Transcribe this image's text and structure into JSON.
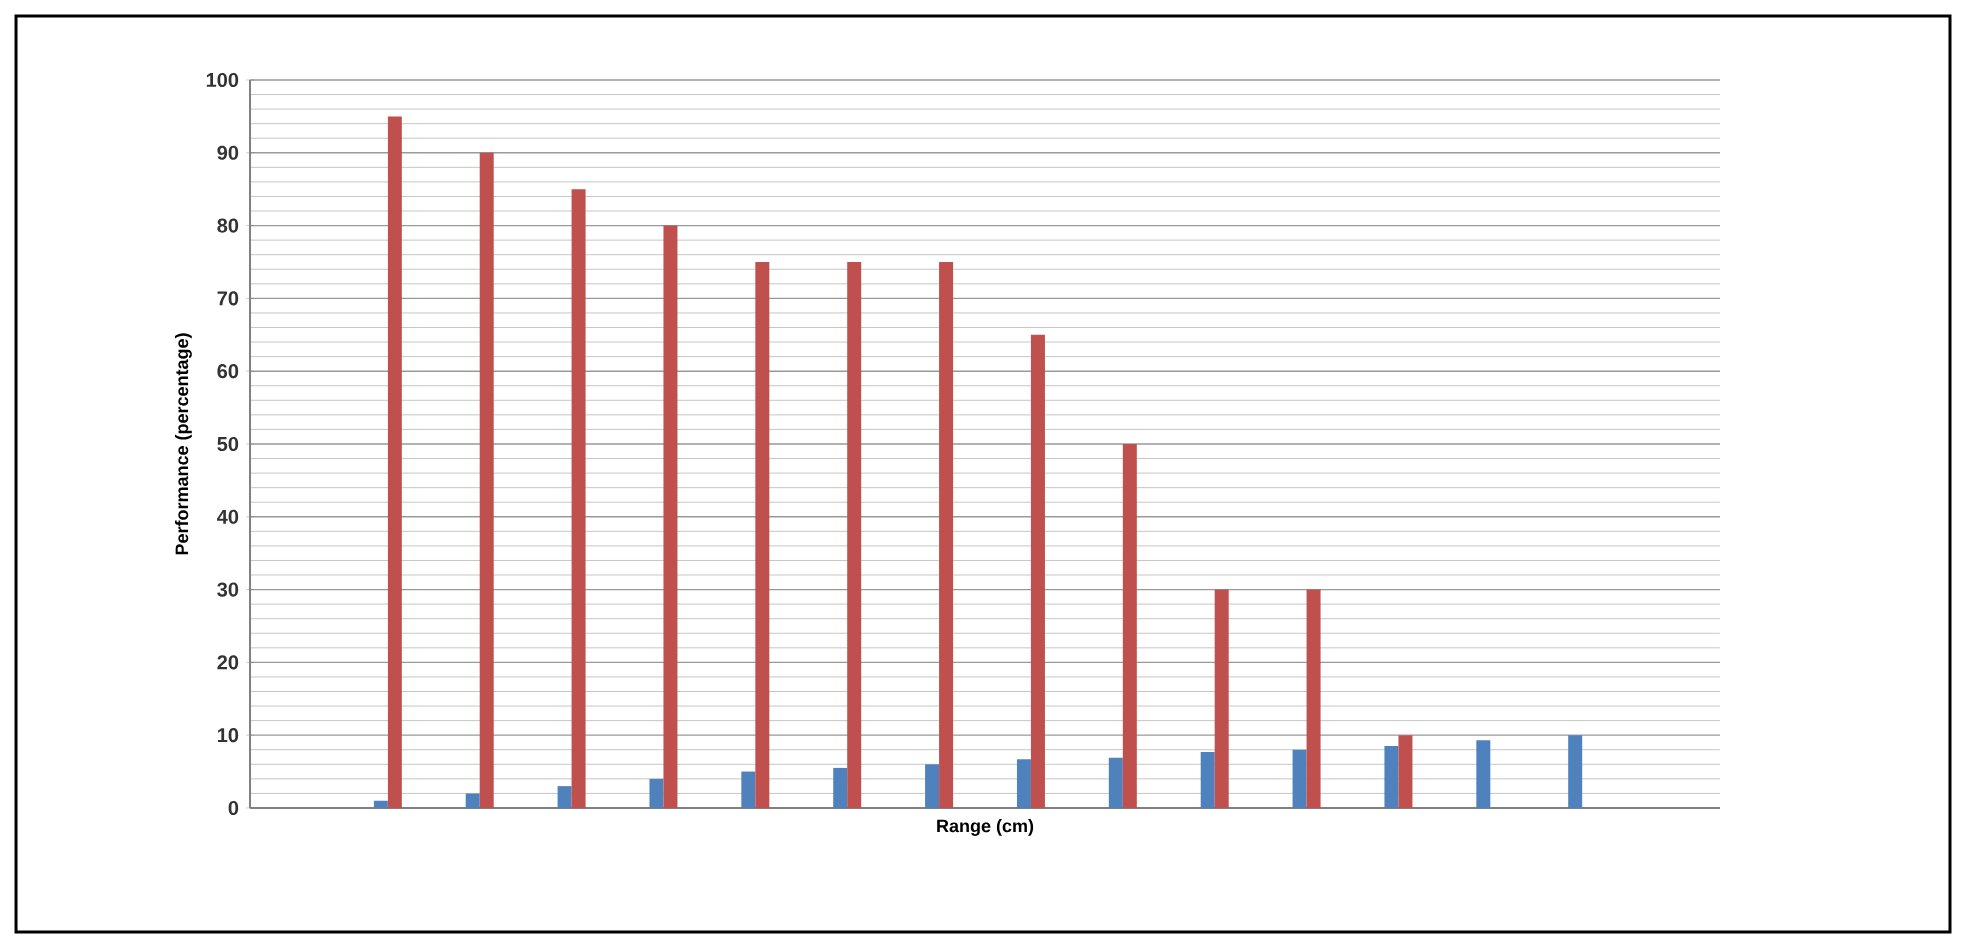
{
  "chart_data": {
    "type": "bar",
    "xlabel": "Range (cm)",
    "ylabel": "Performance (percentage)",
    "categories": [
      null,
      null,
      null,
      null,
      null,
      null,
      null,
      null,
      null,
      null,
      null,
      null,
      null,
      null,
      null,
      null
    ],
    "series": [
      {
        "color": "#4f81bd",
        "values": [
          null,
          1,
          2,
          3,
          4,
          5,
          5.5,
          6,
          6.7,
          6.9,
          7.7,
          8,
          8.5,
          9.3,
          10,
          null
        ]
      },
      {
        "color": "#c0504d",
        "values": [
          null,
          95,
          90,
          85,
          80,
          75,
          75,
          75,
          65,
          50,
          30,
          30,
          10,
          null,
          null,
          null
        ]
      }
    ],
    "ylim": [
      0,
      100
    ],
    "yticks": [
      0,
      10,
      20,
      30,
      40,
      50,
      60,
      70,
      80,
      90,
      100
    ],
    "grid": "y",
    "tick_labels": "y"
  }
}
